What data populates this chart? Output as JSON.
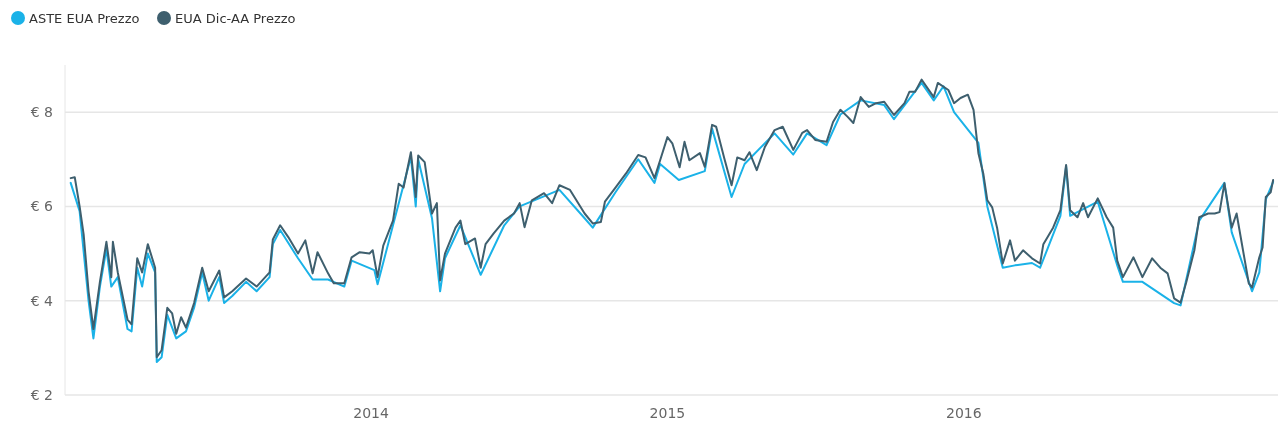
{
  "chart_data": {
    "type": "line",
    "legend": "top left",
    "grid": "y",
    "line_style": "solid",
    "marker": "none",
    "xlim": [
      "2012-12-20",
      "2017-01-22"
    ],
    "xticks": [
      "2014",
      "2015",
      "2016"
    ],
    "ylim": [
      2,
      9
    ],
    "yticks": [
      {
        "value": 2,
        "label": "€ 2"
      },
      {
        "value": 4,
        "label": "€ 4"
      },
      {
        "value": 6,
        "label": "€ 6"
      },
      {
        "value": 8,
        "label": "€ 8"
      }
    ],
    "series": [
      {
        "name": "ASTE EUA Prezzo",
        "color": "#1ab2e8",
        "x": [
          "2012-12-27",
          "2013-01-07",
          "2013-01-18",
          "2013-01-24",
          "2013-02-01",
          "2013-02-09",
          "2013-02-15",
          "2013-02-23",
          "2013-03-07",
          "2013-03-12",
          "2013-03-19",
          "2013-03-25",
          "2013-04-01",
          "2013-04-10",
          "2013-04-12",
          "2013-04-18",
          "2013-04-25",
          "2013-05-06",
          "2013-05-18",
          "2013-05-28",
          "2013-06-07",
          "2013-06-15",
          "2013-06-28",
          "2013-07-04",
          "2013-07-14",
          "2013-07-31",
          "2013-08-13",
          "2013-08-29",
          "2013-09-02",
          "2013-09-11",
          "2013-10-03",
          "2013-10-21",
          "2013-11-09",
          "2013-11-29",
          "2013-12-08",
          "2014-01-05",
          "2014-01-09",
          "2014-01-28",
          "2014-02-19",
          "2014-02-25",
          "2014-02-28",
          "2014-03-17",
          "2014-03-27",
          "2014-04-02",
          "2014-04-21",
          "2014-05-16",
          "2014-06-14",
          "2014-07-03",
          "2014-08-21",
          "2014-09-21",
          "2014-10-01",
          "2014-10-29",
          "2014-11-26",
          "2014-12-16",
          "2014-12-23",
          "2015-01-15",
          "2015-02-16",
          "2015-02-25",
          "2015-03-21",
          "2015-04-06",
          "2015-05-13",
          "2015-06-05",
          "2015-06-22",
          "2015-07-16",
          "2015-08-02",
          "2015-08-27",
          "2015-09-25",
          "2015-10-07",
          "2015-11-10",
          "2015-11-25",
          "2015-12-07",
          "2015-12-20",
          "2016-01-19",
          "2016-01-30",
          "2016-02-18",
          "2016-03-04",
          "2016-03-25",
          "2016-04-04",
          "2016-04-29",
          "2016-05-06",
          "2016-05-11",
          "2016-06-14",
          "2016-07-08",
          "2016-07-15",
          "2016-08-08",
          "2016-09-16",
          "2016-09-24",
          "2016-10-17",
          "2016-11-17",
          "2016-11-26",
          "2016-12-21",
          "2016-12-30",
          "2017-01-07",
          "2017-01-16"
        ],
        "values": [
          6.5,
          5.9,
          4.0,
          3.2,
          4.3,
          5.1,
          4.3,
          4.5,
          3.4,
          3.35,
          4.7,
          4.3,
          5.0,
          4.6,
          2.7,
          2.8,
          3.7,
          3.2,
          3.35,
          3.85,
          4.6,
          4.0,
          4.5,
          3.95,
          4.1,
          4.4,
          4.2,
          4.5,
          5.2,
          5.5,
          4.9,
          4.45,
          4.45,
          4.3,
          4.85,
          4.65,
          4.35,
          5.6,
          7.05,
          6.0,
          7.0,
          5.75,
          4.2,
          4.9,
          5.6,
          4.55,
          5.6,
          6.0,
          6.35,
          5.75,
          5.55,
          6.3,
          7.0,
          6.5,
          6.9,
          6.56,
          6.75,
          7.65,
          6.2,
          6.9,
          7.55,
          7.1,
          7.55,
          7.3,
          7.95,
          8.25,
          8.15,
          7.85,
          8.62,
          8.25,
          8.55,
          8.0,
          7.35,
          6.0,
          4.7,
          4.75,
          4.8,
          4.7,
          5.8,
          6.85,
          5.8,
          6.1,
          4.75,
          4.4,
          4.4,
          3.95,
          3.9,
          5.7,
          6.5,
          5.45,
          4.2,
          4.6,
          6.15,
          6.52
        ]
      },
      {
        "name": "EUA Dic-AA Prezzo",
        "color": "#3e5f6e",
        "x": [
          "2012-12-27",
          "2013-01-01",
          "2013-01-07",
          "2013-01-12",
          "2013-01-18",
          "2013-01-24",
          "2013-02-01",
          "2013-02-09",
          "2013-02-15",
          "2013-02-17",
          "2013-02-23",
          "2013-03-07",
          "2013-03-12",
          "2013-03-19",
          "2013-03-25",
          "2013-04-01",
          "2013-04-10",
          "2013-04-12",
          "2013-04-18",
          "2013-04-25",
          "2013-05-01",
          "2013-05-06",
          "2013-05-12",
          "2013-05-18",
          "2013-05-28",
          "2013-06-07",
          "2013-06-15",
          "2013-06-28",
          "2013-07-04",
          "2013-07-14",
          "2013-07-31",
          "2013-08-13",
          "2013-08-29",
          "2013-09-02",
          "2013-09-11",
          "2013-09-21",
          "2013-10-03",
          "2013-10-12",
          "2013-10-21",
          "2013-10-27",
          "2013-11-09",
          "2013-11-16",
          "2013-11-29",
          "2013-12-08",
          "2013-12-18",
          "2013-12-30",
          "2014-01-03",
          "2014-01-09",
          "2014-01-16",
          "2014-01-28",
          "2014-02-04",
          "2014-02-10",
          "2014-02-19",
          "2014-02-25",
          "2014-02-28",
          "2014-03-08",
          "2014-03-17",
          "2014-03-23",
          "2014-03-27",
          "2014-04-02",
          "2014-04-15",
          "2014-04-21",
          "2014-04-27",
          "2014-05-09",
          "2014-05-16",
          "2014-05-22",
          "2014-06-01",
          "2014-06-14",
          "2014-06-26",
          "2014-07-03",
          "2014-07-09",
          "2014-07-18",
          "2014-08-02",
          "2014-08-12",
          "2014-08-21",
          "2014-09-03",
          "2014-09-21",
          "2014-10-01",
          "2014-10-11",
          "2014-10-16",
          "2014-10-29",
          "2014-11-11",
          "2014-11-26",
          "2014-12-05",
          "2014-12-16",
          "2014-12-23",
          "2015-01-01",
          "2015-01-07",
          "2015-01-16",
          "2015-01-22",
          "2015-01-28",
          "2015-02-10",
          "2015-02-16",
          "2015-02-25",
          "2015-03-02",
          "2015-03-12",
          "2015-03-21",
          "2015-03-28",
          "2015-04-06",
          "2015-04-12",
          "2015-04-21",
          "2015-05-01",
          "2015-05-13",
          "2015-05-23",
          "2015-06-05",
          "2015-06-16",
          "2015-06-22",
          "2015-07-02",
          "2015-07-16",
          "2015-07-24",
          "2015-08-02",
          "2015-08-11",
          "2015-08-18",
          "2015-08-27",
          "2015-09-06",
          "2015-09-15",
          "2015-09-25",
          "2015-10-07",
          "2015-10-20",
          "2015-10-26",
          "2015-11-02",
          "2015-11-10",
          "2015-11-25",
          "2015-11-30",
          "2015-12-13",
          "2015-12-20",
          "2015-12-28",
          "2016-01-06",
          "2016-01-13",
          "2016-01-19",
          "2016-01-25",
          "2016-01-30",
          "2016-02-05",
          "2016-02-11",
          "2016-02-18",
          "2016-02-27",
          "2016-03-04",
          "2016-03-14",
          "2016-03-25",
          "2016-04-04",
          "2016-04-08",
          "2016-04-20",
          "2016-04-29",
          "2016-05-06",
          "2016-05-11",
          "2016-05-20",
          "2016-05-27",
          "2016-06-02",
          "2016-06-14",
          "2016-06-25",
          "2016-07-03",
          "2016-07-08",
          "2016-07-15",
          "2016-07-28",
          "2016-08-08",
          "2016-08-20",
          "2016-08-30",
          "2016-09-08",
          "2016-09-16",
          "2016-09-24",
          "2016-10-01",
          "2016-10-11",
          "2016-10-17",
          "2016-10-28",
          "2016-11-05",
          "2016-11-11",
          "2016-11-17",
          "2016-11-26",
          "2016-12-02",
          "2016-12-17",
          "2016-12-21",
          "2016-12-30",
          "2017-01-03",
          "2017-01-07",
          "2017-01-13",
          "2017-01-16"
        ],
        "values": [
          6.6,
          6.62,
          6.0,
          5.4,
          4.2,
          3.4,
          4.4,
          5.25,
          4.5,
          5.25,
          4.6,
          3.6,
          3.5,
          4.9,
          4.6,
          5.2,
          4.7,
          2.8,
          2.95,
          3.85,
          3.73,
          3.3,
          3.65,
          3.43,
          3.95,
          4.7,
          4.2,
          4.64,
          4.07,
          4.2,
          4.47,
          4.3,
          4.6,
          5.3,
          5.6,
          5.35,
          5.0,
          5.28,
          4.58,
          5.03,
          4.58,
          4.37,
          4.37,
          4.92,
          5.03,
          5.0,
          5.07,
          4.5,
          5.17,
          5.7,
          6.48,
          6.4,
          7.15,
          6.2,
          7.08,
          6.94,
          5.85,
          6.07,
          4.43,
          5.0,
          5.55,
          5.7,
          5.2,
          5.32,
          4.7,
          5.2,
          5.43,
          5.7,
          5.85,
          6.07,
          5.56,
          6.13,
          6.28,
          6.07,
          6.45,
          6.35,
          5.85,
          5.64,
          5.67,
          6.1,
          6.4,
          6.7,
          7.09,
          7.04,
          6.6,
          6.98,
          7.47,
          7.34,
          6.83,
          7.37,
          6.98,
          7.13,
          6.84,
          7.73,
          7.69,
          7.02,
          6.45,
          7.04,
          6.98,
          7.15,
          6.77,
          7.26,
          7.62,
          7.69,
          7.2,
          7.56,
          7.62,
          7.41,
          7.37,
          7.79,
          8.05,
          7.9,
          7.77,
          8.32,
          8.11,
          8.19,
          8.22,
          7.94,
          8.19,
          8.43,
          8.43,
          8.69,
          8.32,
          8.62,
          8.47,
          8.19,
          8.3,
          8.37,
          8.05,
          7.13,
          6.7,
          6.13,
          5.98,
          5.55,
          4.79,
          5.28,
          4.85,
          5.07,
          4.9,
          4.79,
          5.2,
          5.55,
          5.92,
          6.88,
          5.92,
          5.77,
          6.07,
          5.77,
          6.17,
          5.77,
          5.55,
          4.85,
          4.5,
          4.92,
          4.5,
          4.9,
          4.7,
          4.58,
          4.05,
          3.96,
          4.39,
          5.07,
          5.77,
          5.85,
          5.85,
          5.88,
          6.49,
          5.55,
          5.85,
          4.37,
          4.28,
          4.92,
          5.13,
          6.2,
          6.3,
          6.56
        ]
      }
    ]
  }
}
